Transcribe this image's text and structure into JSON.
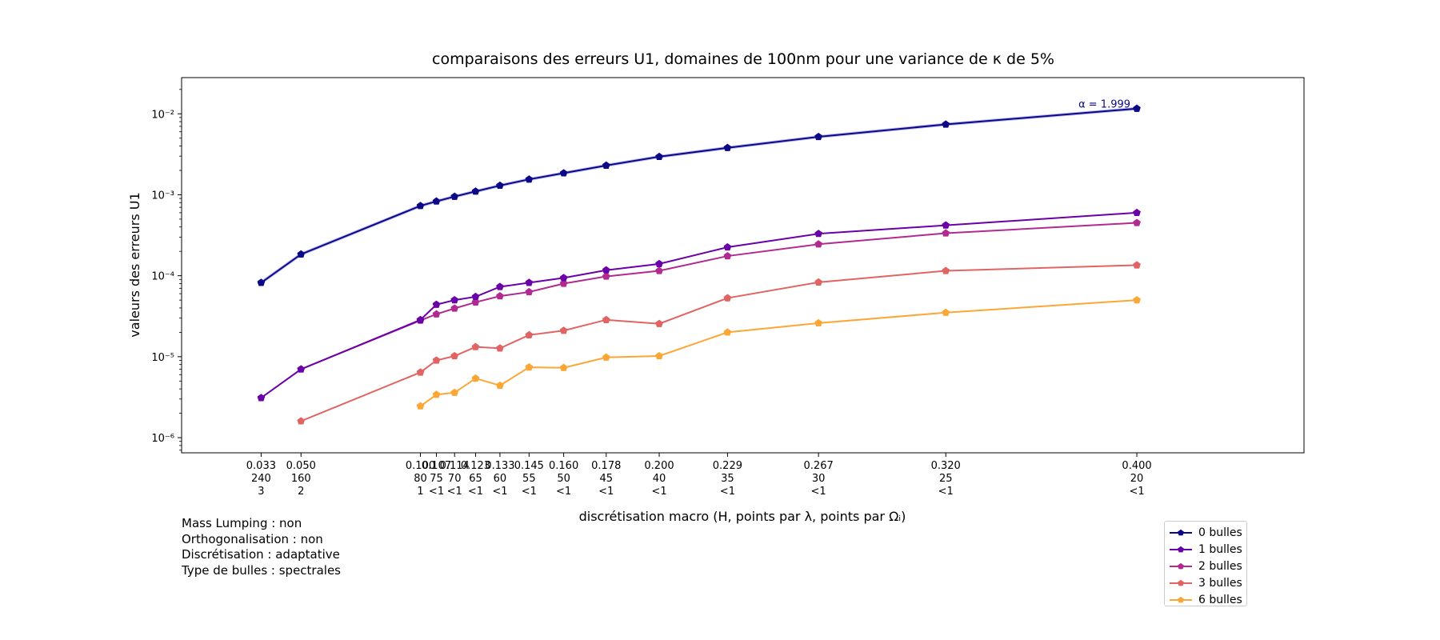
{
  "chart_data": {
    "type": "line",
    "title": "comparaisons des erreurs U1, domaines de 100nm pour une variance de κ de 5%",
    "xlabel": "discrétisation macro (H, points par λ, points par Ωᵢ)",
    "ylabel": "valeurs des erreurs U1",
    "xscale": "linear",
    "yscale": "log",
    "xlim": [
      0.0,
      0.47
    ],
    "ylim": [
      6.5e-07,
      0.028
    ],
    "yticks": [
      {
        "value": 1e-06,
        "label": "10⁻⁶"
      },
      {
        "value": 1e-05,
        "label": "10⁻⁵"
      },
      {
        "value": 0.0001,
        "label": "10⁻⁴"
      },
      {
        "value": 0.001,
        "label": "10⁻³"
      },
      {
        "value": 0.01,
        "label": "10⁻²"
      }
    ],
    "xticks": [
      {
        "value": 0.0333,
        "lines": [
          "0.033",
          "240",
          "3"
        ]
      },
      {
        "value": 0.05,
        "lines": [
          "0.050",
          "160",
          "2"
        ]
      },
      {
        "value": 0.1,
        "lines": [
          "0.100",
          "80",
          "1"
        ]
      },
      {
        "value": 0.1067,
        "lines": [
          "0.107",
          "75",
          "<1"
        ]
      },
      {
        "value": 0.1143,
        "lines": [
          "0.114",
          "70",
          "<1"
        ]
      },
      {
        "value": 0.1231,
        "lines": [
          "0.123",
          "65",
          "<1"
        ]
      },
      {
        "value": 0.1333,
        "lines": [
          "0.133",
          "60",
          "<1"
        ]
      },
      {
        "value": 0.1455,
        "lines": [
          "0.145",
          "55",
          "<1"
        ]
      },
      {
        "value": 0.16,
        "lines": [
          "0.160",
          "50",
          "<1"
        ]
      },
      {
        "value": 0.1778,
        "lines": [
          "0.178",
          "45",
          "<1"
        ]
      },
      {
        "value": 0.2,
        "lines": [
          "0.200",
          "40",
          "<1"
        ]
      },
      {
        "value": 0.2286,
        "lines": [
          "0.229",
          "35",
          "<1"
        ]
      },
      {
        "value": 0.2667,
        "lines": [
          "0.267",
          "30",
          "<1"
        ]
      },
      {
        "value": 0.32,
        "lines": [
          "0.320",
          "25",
          "<1"
        ]
      },
      {
        "value": 0.4,
        "lines": [
          "0.400",
          "20",
          "<1"
        ]
      }
    ],
    "series": [
      {
        "name": "0 bulles",
        "color": "#0d0887",
        "x": [
          0.0333,
          0.05,
          0.1,
          0.1067,
          0.1143,
          0.1231,
          0.1333,
          0.1455,
          0.16,
          0.1778,
          0.2,
          0.2286,
          0.2667,
          0.32,
          0.4
        ],
        "y": [
          8.2e-05,
          0.000184,
          0.00073,
          0.00083,
          0.00095,
          0.0011,
          0.0013,
          0.00155,
          0.00185,
          0.0023,
          0.00295,
          0.0038,
          0.0052,
          0.0074,
          0.0116
        ]
      },
      {
        "name": "1 bulles",
        "color": "#6a00a8",
        "x": [
          0.0333,
          0.05,
          0.1,
          0.1067,
          0.1143,
          0.1231,
          0.1333,
          0.1455,
          0.16,
          0.1778,
          0.2,
          0.2286,
          0.2667,
          0.32,
          0.4
        ],
        "y": [
          3.1e-06,
          7e-06,
          2.85e-05,
          4.4e-05,
          5e-05,
          5.5e-05,
          7.3e-05,
          8.2e-05,
          9.4e-05,
          0.000117,
          0.00014,
          0.000225,
          0.00033,
          0.00042,
          0.0006
        ]
      },
      {
        "name": "2 bulles",
        "color": "#b12a90",
        "x": [
          0.05,
          0.1,
          0.1067,
          0.1143,
          0.1231,
          0.1333,
          0.1455,
          0.16,
          0.1778,
          0.2,
          0.2286,
          0.2667,
          0.32,
          0.4
        ],
        "y": [
          7e-06,
          2.8e-05,
          3.35e-05,
          3.95e-05,
          4.7e-05,
          5.6e-05,
          6.3e-05,
          8e-05,
          9.8e-05,
          0.000115,
          0.000175,
          0.000245,
          0.000335,
          0.00045
        ]
      },
      {
        "name": "3 bulles",
        "color": "#e16462",
        "x": [
          0.05,
          0.1,
          0.1067,
          0.1143,
          0.1231,
          0.1333,
          0.1455,
          0.16,
          0.1778,
          0.2,
          0.2286,
          0.2667,
          0.32,
          0.4
        ],
        "y": [
          1.6e-06,
          6.4e-06,
          9e-06,
          1.02e-05,
          1.32e-05,
          1.27e-05,
          1.85e-05,
          2.1e-05,
          2.85e-05,
          2.55e-05,
          5.3e-05,
          8.3e-05,
          0.000115,
          0.000135
        ]
      },
      {
        "name": "6 bulles",
        "color": "#fca636",
        "x": [
          0.1,
          0.1067,
          0.1143,
          0.1231,
          0.1333,
          0.1455,
          0.16,
          0.1778,
          0.2,
          0.2286,
          0.2667,
          0.32,
          0.4
        ],
        "y": [
          2.45e-06,
          3.4e-06,
          3.6e-06,
          5.4e-06,
          4.4e-06,
          7.4e-06,
          7.3e-06,
          9.8e-06,
          1.02e-05,
          2e-05,
          2.6e-05,
          3.5e-05,
          5e-05
        ]
      }
    ],
    "fit": {
      "label": "α = 1.999",
      "color": "#6b6bd6",
      "series": "0 bulles"
    },
    "legend_placement": "lower-right, outside plot",
    "grid": false
  },
  "notes": [
    "Mass Lumping : non",
    "Orthogonalisation : non",
    "Discrétisation : adaptative",
    "Type de bulles : spectrales"
  ],
  "legend": [
    {
      "label": "0 bulles",
      "color": "#0d0887"
    },
    {
      "label": "1 bulles",
      "color": "#6a00a8"
    },
    {
      "label": "2 bulles",
      "color": "#b12a90"
    },
    {
      "label": "3 bulles",
      "color": "#e16462"
    },
    {
      "label": "6 bulles",
      "color": "#fca636"
    }
  ]
}
